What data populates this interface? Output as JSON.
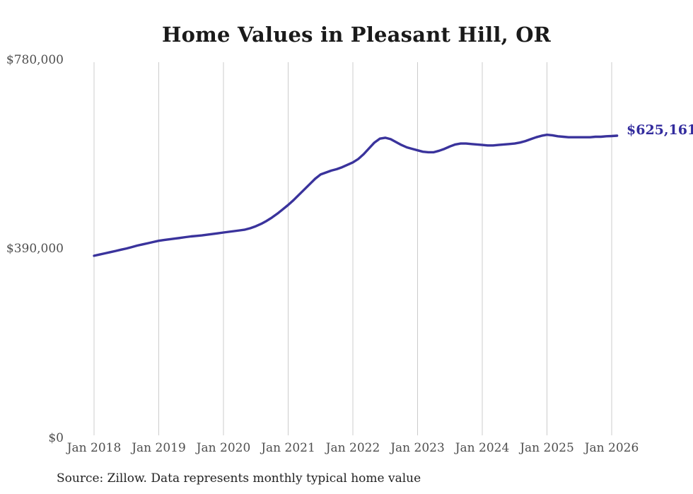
{
  "page": {
    "title": "Home Values in Pleasant Hill, OR",
    "source_note": "Source: Zillow. Data represents monthly typical home value"
  },
  "colors": {
    "line": "#3a339c",
    "end_label": "#332c9e",
    "grid": "#cccccc",
    "tick_text": "#4f4f4f",
    "title_text": "#1a1a1a",
    "source_text": "#232323",
    "background": "#ffffff"
  },
  "chart_data": {
    "type": "line",
    "title": "Home Values in Pleasant Hill, OR",
    "xlabel": "",
    "ylabel": "",
    "ylim": [
      0,
      780000
    ],
    "grid": "vertical-only",
    "legend": "none",
    "frequency": "monthly",
    "x_start": "Jan 2018",
    "x_end": "Feb 2026",
    "x_tick_labels": [
      "Jan 2018",
      "Jan 2019",
      "Jan 2020",
      "Jan 2021",
      "Jan 2022",
      "Jan 2023",
      "Jan 2024",
      "Jan 2025",
      "Jan 2026"
    ],
    "y_tick_labels": [
      "$0",
      "$390,000",
      "$780,000"
    ],
    "y_tick_values": [
      0,
      390000,
      780000
    ],
    "end_label": "$625,161",
    "end_value": 625161,
    "series": [
      {
        "name": "Typical home value",
        "values": [
          377000,
          379500,
          382000,
          384500,
          387000,
          389500,
          392000,
          395000,
          398000,
          400500,
          403000,
          405500,
          408000,
          409500,
          411000,
          412500,
          414000,
          415500,
          417000,
          418000,
          419000,
          420500,
          422000,
          423500,
          425000,
          426500,
          428000,
          429500,
          431000,
          434000,
          438000,
          443000,
          449000,
          456000,
          464000,
          473000,
          482000,
          492000,
          503000,
          514000,
          525000,
          536000,
          545000,
          549000,
          553000,
          556000,
          560000,
          565000,
          570000,
          577000,
          587000,
          599000,
          611000,
          619000,
          621000,
          618000,
          612000,
          606000,
          601000,
          598000,
          595000,
          592000,
          591000,
          591000,
          594000,
          598000,
          603000,
          607000,
          609000,
          609000,
          608000,
          607000,
          606000,
          605000,
          605000,
          606000,
          607000,
          608000,
          609000,
          611000,
          614000,
          618000,
          622000,
          625000,
          627000,
          626000,
          624000,
          623000,
          622000,
          622000,
          622000,
          622000,
          622000,
          623000,
          623000,
          624000,
          624500,
          625161
        ]
      }
    ]
  }
}
